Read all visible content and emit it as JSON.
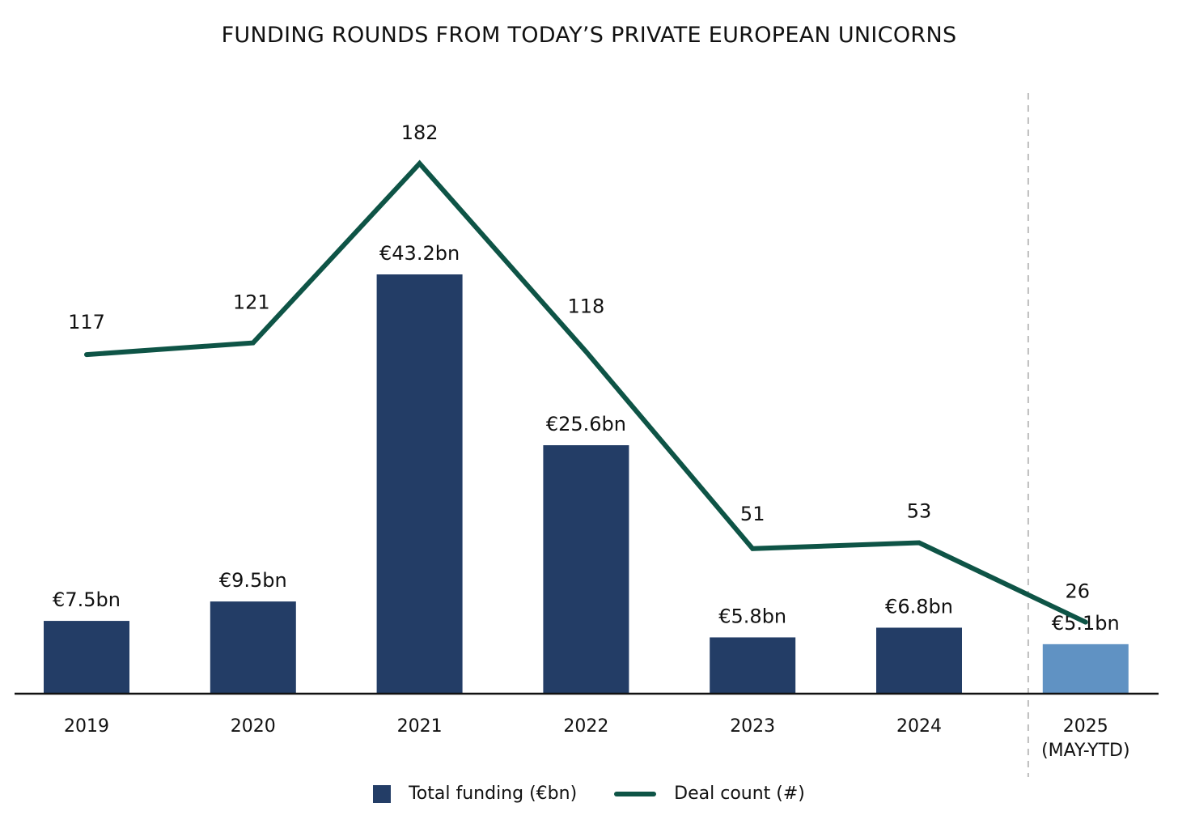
{
  "chart_data": {
    "type": "bar",
    "title": "FUNDING ROUNDS FROM TODAY’S PRIVATE EUROPEAN UNICORNS",
    "categories": [
      "2019",
      "2020",
      "2021",
      "2022",
      "2023",
      "2024",
      "2025"
    ],
    "category_sublabels": [
      "",
      "",
      "",
      "",
      "",
      "",
      "(MAY-YTD)"
    ],
    "series": [
      {
        "name": "Total funding (€bn)",
        "type": "bar",
        "values": [
          7.5,
          9.5,
          43.2,
          25.6,
          5.8,
          6.8,
          5.1
        ],
        "labels": [
          "€7.5bn",
          "€9.5bn",
          "€43.2bn",
          "€25.6bn",
          "€5.8bn",
          "€6.8bn",
          "€5.1bn"
        ],
        "color": "#233d66",
        "highlight_color": "#6092c3"
      },
      {
        "name": "Deal count (#)",
        "type": "line",
        "values": [
          117,
          121,
          182,
          118,
          51,
          53,
          26
        ],
        "labels": [
          "117",
          "121",
          "182",
          "118",
          "51",
          "53",
          "26"
        ],
        "color": "#0e5446"
      }
    ],
    "bar_ylim": [
      0,
      50
    ],
    "line_ylim": [
      -10,
      200
    ],
    "divider_before_category": "2025",
    "grid": false,
    "legend_position": "bottom-center",
    "xlabel": "",
    "ylabel": ""
  },
  "legend": {
    "bar_label": "Total funding (€bn)",
    "line_label": "Deal count (#)"
  }
}
